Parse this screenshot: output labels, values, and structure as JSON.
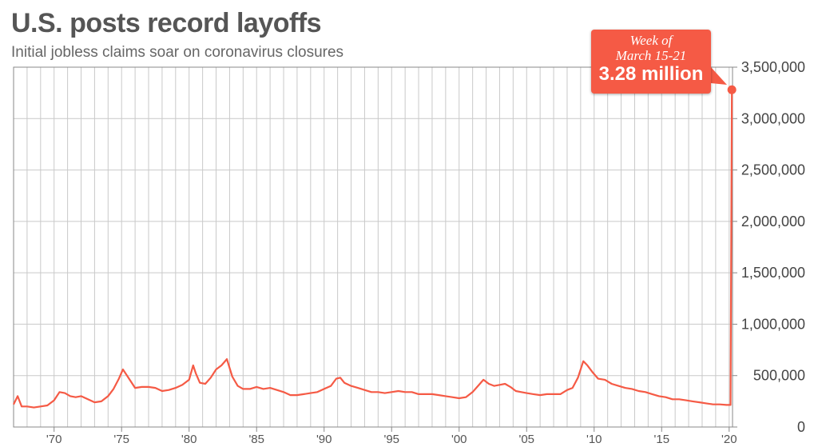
{
  "title": "U.S. posts record layoffs",
  "subtitle": "Initial jobless claims soar on coronavirus closures",
  "colors": {
    "line": "#f55a45",
    "grid": "#c9c9c9",
    "title": "#555555"
  },
  "callout": {
    "line1": "Week of",
    "line2": "March 15-21",
    "line3": "3.28 million"
  },
  "chart_data": {
    "type": "line",
    "title": "U.S. posts record layoffs",
    "subtitle": "Initial jobless claims soar on coronavirus closures",
    "xlabel": "",
    "ylabel": "",
    "xlim": [
      1967.0,
      2020.25
    ],
    "ylim": [
      0,
      3500000
    ],
    "grid": true,
    "y_axis_side": "right",
    "yticks": [
      0,
      500000,
      1000000,
      1500000,
      2000000,
      2500000,
      3000000,
      3500000
    ],
    "ytick_labels": [
      "0",
      "500,000",
      "1,000,000",
      "1,500,000",
      "2,000,000",
      "2,500,000",
      "3,000,000",
      "3,500,000"
    ],
    "xticks": [
      1970,
      1975,
      1980,
      1985,
      1990,
      1995,
      2000,
      2005,
      2010,
      2015,
      2020
    ],
    "xtick_labels": [
      "'70",
      "'75",
      "'80",
      "'85",
      "'90",
      "'95",
      "'00",
      "'05",
      "'10",
      "'15",
      "'20"
    ],
    "series": [
      {
        "x": [
          1967.0,
          1967.3,
          1967.6,
          1968.0,
          1968.5,
          1969.0,
          1969.5,
          1970.0,
          1970.4,
          1970.8,
          1971.2,
          1971.6,
          1972.0,
          1972.5,
          1973.0,
          1973.5,
          1974.0,
          1974.4,
          1974.8,
          1975.1,
          1975.3,
          1975.6,
          1976.0,
          1976.5,
          1977.0,
          1977.5,
          1978.0,
          1978.5,
          1979.0,
          1979.5,
          1980.0,
          1980.3,
          1980.5,
          1980.8,
          1981.2,
          1981.6,
          1982.0,
          1982.4,
          1982.8,
          1983.2,
          1983.6,
          1984.0,
          1984.5,
          1985.0,
          1985.5,
          1986.0,
          1986.5,
          1987.0,
          1987.5,
          1988.0,
          1988.5,
          1989.0,
          1989.5,
          1990.0,
          1990.5,
          1990.9,
          1991.2,
          1991.5,
          1992.0,
          1992.5,
          1993.0,
          1993.5,
          1994.0,
          1994.5,
          1995.0,
          1995.5,
          1996.0,
          1996.5,
          1997.0,
          1997.5,
          1998.0,
          1998.5,
          1999.0,
          1999.5,
          2000.0,
          2000.5,
          2001.0,
          2001.4,
          2001.8,
          2002.2,
          2002.6,
          2003.0,
          2003.4,
          2003.8,
          2004.2,
          2004.6,
          2005.0,
          2005.5,
          2006.0,
          2006.5,
          2007.0,
          2007.5,
          2008.0,
          2008.4,
          2008.8,
          2009.2,
          2009.5,
          2009.9,
          2010.3,
          2010.8,
          2011.3,
          2011.8,
          2012.3,
          2012.8,
          2013.3,
          2013.8,
          2014.3,
          2014.8,
          2015.3,
          2015.8,
          2016.3,
          2016.8,
          2017.3,
          2017.8,
          2018.3,
          2018.8,
          2019.3,
          2019.8,
          2020.1,
          2020.2
        ],
        "y": [
          220000,
          300000,
          200000,
          200000,
          190000,
          200000,
          210000,
          260000,
          340000,
          330000,
          300000,
          290000,
          300000,
          270000,
          240000,
          250000,
          300000,
          370000,
          470000,
          560000,
          520000,
          460000,
          380000,
          390000,
          390000,
          380000,
          350000,
          360000,
          380000,
          410000,
          460000,
          600000,
          520000,
          430000,
          420000,
          480000,
          560000,
          600000,
          660000,
          490000,
          400000,
          370000,
          370000,
          390000,
          370000,
          380000,
          360000,
          340000,
          310000,
          310000,
          320000,
          330000,
          340000,
          370000,
          400000,
          470000,
          480000,
          430000,
          400000,
          380000,
          360000,
          340000,
          340000,
          330000,
          340000,
          350000,
          340000,
          340000,
          320000,
          320000,
          320000,
          310000,
          300000,
          290000,
          280000,
          290000,
          340000,
          400000,
          460000,
          420000,
          400000,
          410000,
          420000,
          390000,
          350000,
          340000,
          330000,
          320000,
          310000,
          320000,
          320000,
          320000,
          360000,
          380000,
          480000,
          640000,
          600000,
          530000,
          470000,
          460000,
          420000,
          400000,
          380000,
          370000,
          350000,
          340000,
          320000,
          300000,
          290000,
          270000,
          270000,
          260000,
          250000,
          240000,
          230000,
          220000,
          220000,
          215000,
          215000,
          3280000
        ]
      }
    ],
    "annotations": [
      {
        "text": "Week of March 15-21 3.28 million",
        "x": 2020.2,
        "y": 3280000
      }
    ]
  }
}
